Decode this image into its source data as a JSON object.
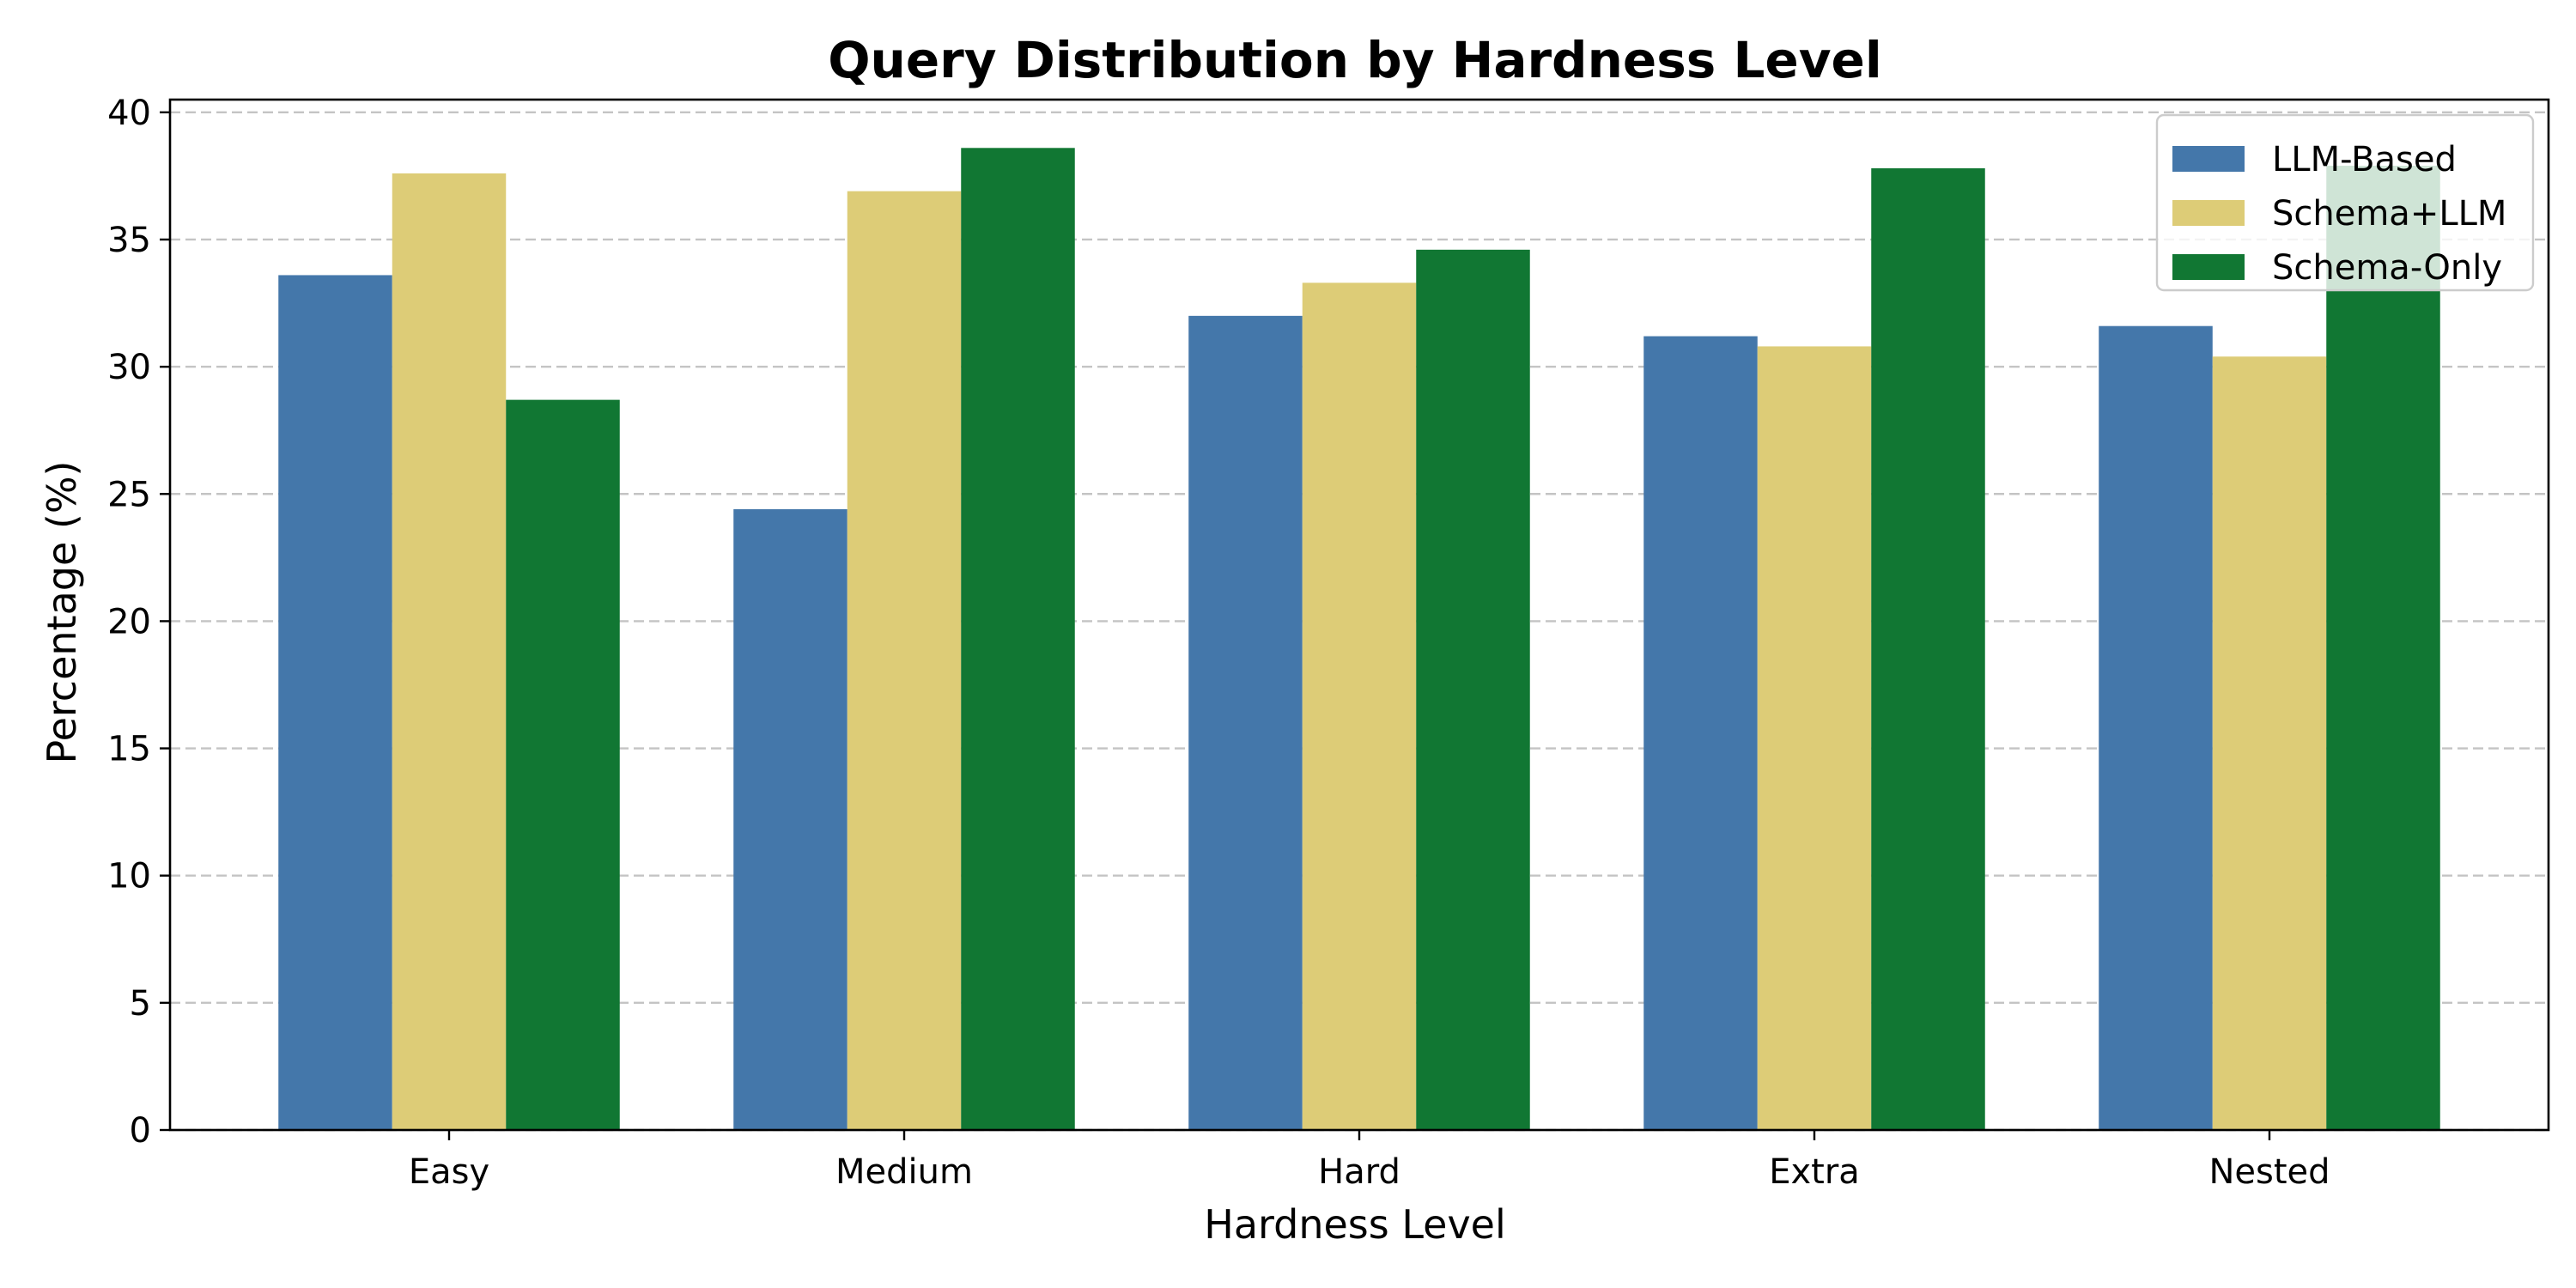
{
  "chart_data": {
    "type": "bar",
    "title": "Query Distribution by Hardness Level",
    "xlabel": "Hardness Level",
    "ylabel": "Percentage (%)",
    "categories": [
      "Easy",
      "Medium",
      "Hard",
      "Extra",
      "Nested"
    ],
    "series": [
      {
        "name": "LLM-Based",
        "color": "#4477aa",
        "values": [
          33.6,
          24.4,
          32.0,
          31.2,
          31.6
        ]
      },
      {
        "name": "Schema+LLM",
        "color": "#ddcc77",
        "values": [
          37.6,
          36.9,
          33.3,
          30.8,
          30.4
        ]
      },
      {
        "name": "Schema-Only",
        "color": "#117733",
        "values": [
          28.7,
          38.6,
          34.6,
          37.8,
          37.9
        ]
      }
    ],
    "ylim": [
      0,
      40.5
    ],
    "yticks": [
      0,
      5,
      10,
      15,
      20,
      25,
      30,
      35,
      40
    ],
    "grid": true,
    "grid_axis": "y",
    "legend_position": "top-right"
  }
}
